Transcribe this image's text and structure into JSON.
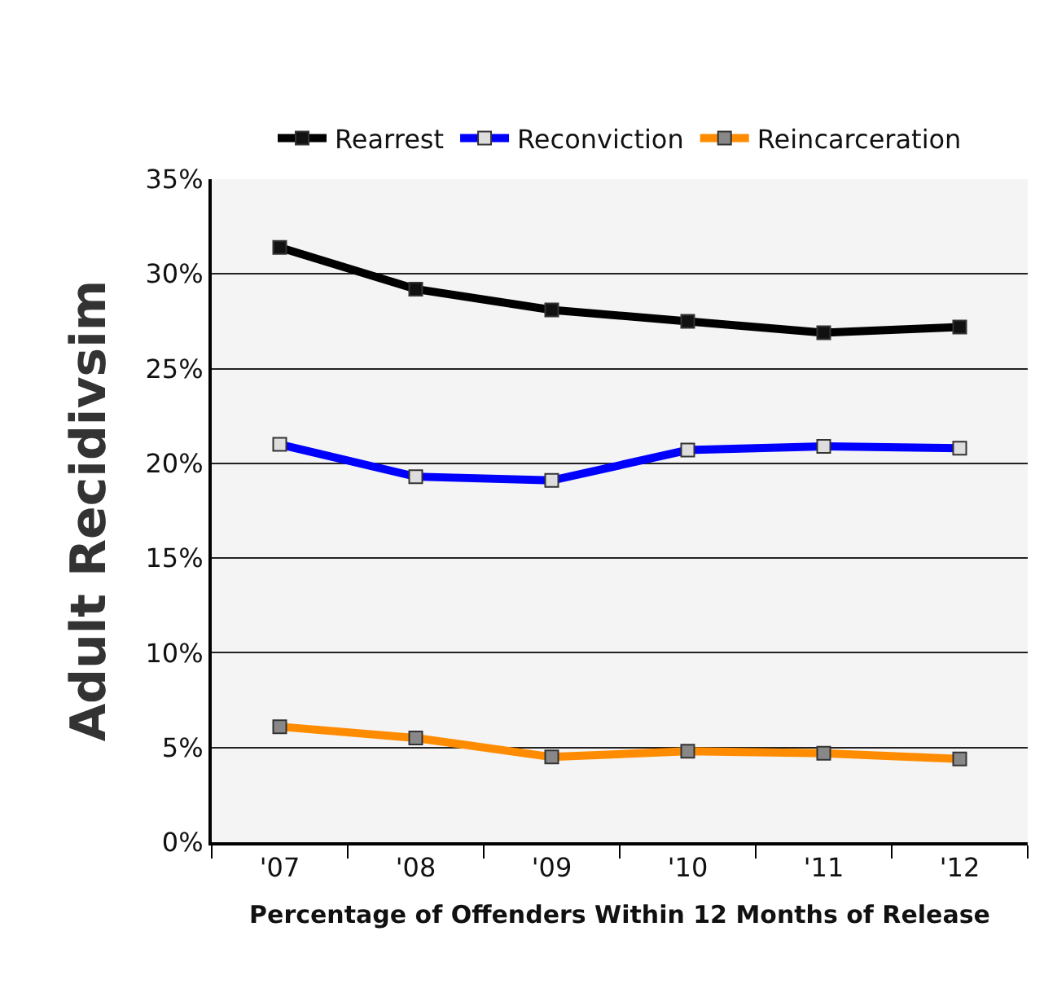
{
  "chart_data": {
    "type": "line",
    "ylabel": "Adult Recidivsim",
    "xlabel": "Percentage of Offenders Within 12 Months of Release",
    "categories": [
      "'07",
      "'08",
      "'09",
      "'10",
      "'11",
      "'12"
    ],
    "series": [
      {
        "name": "Rearrest",
        "color": "#000000",
        "values": [
          31.4,
          29.2,
          28.1,
          27.5,
          26.9,
          27.2
        ]
      },
      {
        "name": "Reconviction",
        "color": "#0000ff",
        "values": [
          21.0,
          19.3,
          19.1,
          20.7,
          20.9,
          20.8
        ]
      },
      {
        "name": "Reincarceration",
        "color": "#ff8c00",
        "values": [
          6.1,
          5.5,
          4.5,
          4.8,
          4.7,
          4.4
        ]
      }
    ],
    "ylim": [
      0,
      35
    ],
    "yticks": [
      {
        "value": 0,
        "label": "0%"
      },
      {
        "value": 5,
        "label": "5%"
      },
      {
        "value": 10,
        "label": "10%"
      },
      {
        "value": 15,
        "label": "15%"
      },
      {
        "value": 20,
        "label": "20%"
      },
      {
        "value": 25,
        "label": "25%"
      },
      {
        "value": 30,
        "label": "30%"
      },
      {
        "value": 35,
        "label": "35%"
      }
    ],
    "grid": "y",
    "legend": "top",
    "marker": "square",
    "line_style": "solid"
  }
}
